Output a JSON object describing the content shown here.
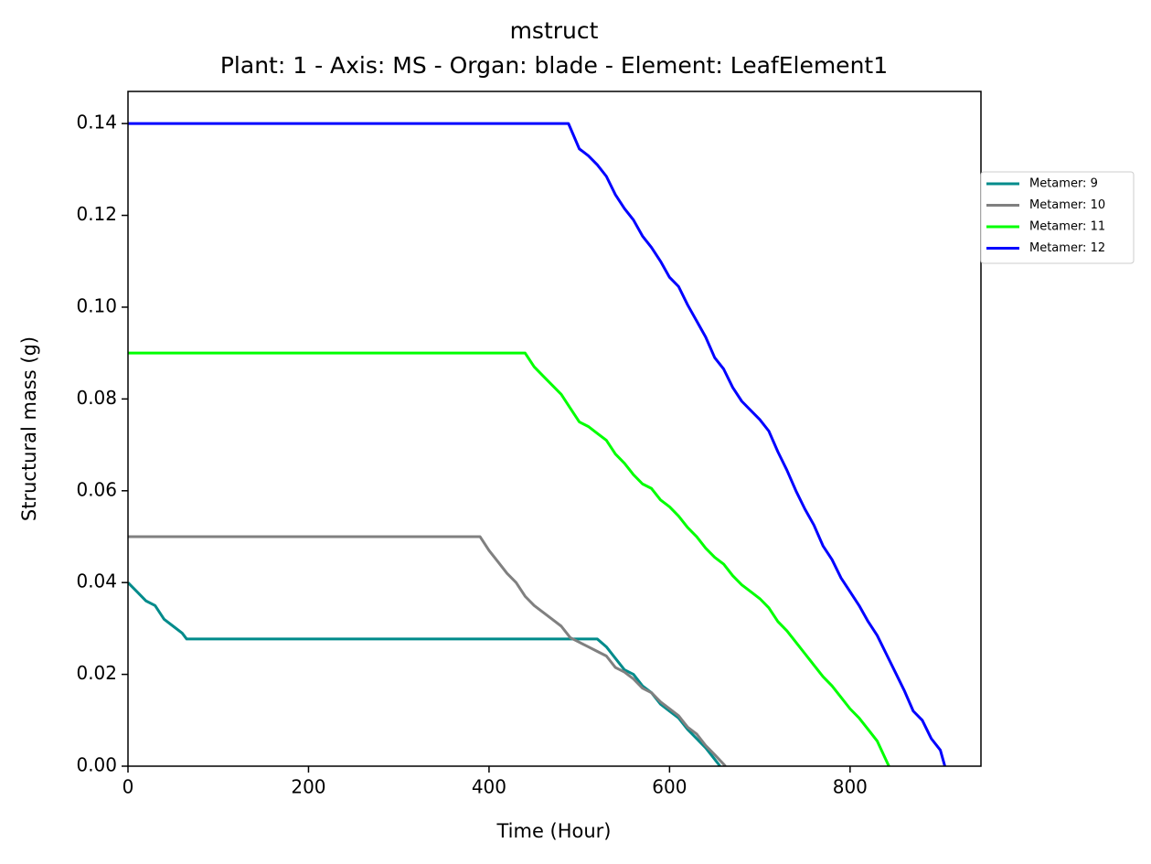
{
  "chart_data": {
    "type": "line",
    "title": "mstruct",
    "subtitle": "Plant: 1 - Axis: MS - Organ: blade - Element: LeafElement1",
    "x_label": "Time (Hour)",
    "y_label": "Structural mass (g)",
    "xlim": [
      0,
      945
    ],
    "ylim": [
      0,
      0.147
    ],
    "xticks": [
      0,
      200,
      400,
      600,
      800
    ],
    "yticks": [
      {
        "value": 0,
        "label": "0.00"
      },
      {
        "value": 0.02,
        "label": "0.02"
      },
      {
        "value": 0.04,
        "label": "0.04"
      },
      {
        "value": 0.06,
        "label": "0.06"
      },
      {
        "value": 0.08,
        "label": "0.08"
      },
      {
        "value": 0.1,
        "label": "0.10"
      },
      {
        "value": 0.12,
        "label": "0.12"
      },
      {
        "value": 0.14,
        "label": "0.14"
      }
    ],
    "grid": false,
    "legend": "outside-right",
    "series": [
      {
        "name": "Metamer: 9",
        "color": "#008b8b",
        "x": [
          0,
          10,
          20,
          30,
          40,
          50,
          60,
          65,
          520,
          530,
          540,
          550,
          560,
          570,
          580,
          590,
          600,
          610,
          620,
          630,
          640,
          650,
          656
        ],
        "values": [
          0.04,
          0.038,
          0.036,
          0.035,
          0.032,
          0.0305,
          0.029,
          0.0277,
          0.0277,
          0.026,
          0.0235,
          0.021,
          0.02,
          0.0175,
          0.016,
          0.0135,
          0.012,
          0.0105,
          0.008,
          0.006,
          0.004,
          0.0015,
          0
        ]
      },
      {
        "name": "Metamer: 10",
        "color": "#808080",
        "x": [
          0,
          390,
          400,
          410,
          420,
          430,
          440,
          450,
          460,
          470,
          480,
          490,
          500,
          510,
          520,
          530,
          540,
          550,
          560,
          570,
          580,
          590,
          600,
          610,
          620,
          630,
          640,
          650,
          662
        ],
        "values": [
          0.05,
          0.05,
          0.047,
          0.0445,
          0.042,
          0.04,
          0.037,
          0.035,
          0.0335,
          0.032,
          0.0305,
          0.028,
          0.027,
          0.026,
          0.025,
          0.024,
          0.0215,
          0.0205,
          0.019,
          0.017,
          0.016,
          0.014,
          0.0125,
          0.011,
          0.0085,
          0.007,
          0.0045,
          0.0025,
          0
        ]
      },
      {
        "name": "Metamer: 11",
        "color": "#00ff00",
        "x": [
          0,
          440,
          450,
          460,
          470,
          480,
          490,
          500,
          510,
          520,
          530,
          540,
          550,
          560,
          570,
          580,
          590,
          600,
          610,
          620,
          630,
          640,
          650,
          660,
          670,
          680,
          690,
          700,
          710,
          720,
          730,
          740,
          750,
          760,
          770,
          780,
          790,
          800,
          810,
          820,
          830,
          843
        ],
        "values": [
          0.09,
          0.09,
          0.087,
          0.085,
          0.083,
          0.081,
          0.078,
          0.075,
          0.074,
          0.0725,
          0.071,
          0.068,
          0.066,
          0.0635,
          0.0615,
          0.0605,
          0.058,
          0.0565,
          0.0545,
          0.052,
          0.05,
          0.0475,
          0.0455,
          0.044,
          0.0415,
          0.0395,
          0.038,
          0.0365,
          0.0345,
          0.0315,
          0.0295,
          0.027,
          0.0245,
          0.022,
          0.0195,
          0.0175,
          0.015,
          0.0125,
          0.0105,
          0.008,
          0.0055,
          0
        ]
      },
      {
        "name": "Metamer: 12",
        "color": "#0000ff",
        "x": [
          0,
          488,
          500,
          510,
          520,
          530,
          540,
          550,
          560,
          570,
          580,
          590,
          600,
          610,
          620,
          630,
          640,
          650,
          660,
          670,
          680,
          690,
          700,
          710,
          720,
          730,
          740,
          750,
          760,
          770,
          780,
          790,
          800,
          810,
          820,
          830,
          840,
          850,
          860,
          870,
          880,
          890,
          900,
          905
        ],
        "values": [
          0.14,
          0.14,
          0.1345,
          0.133,
          0.131,
          0.1285,
          0.1245,
          0.1215,
          0.119,
          0.1155,
          0.113,
          0.11,
          0.1065,
          0.1045,
          0.1005,
          0.097,
          0.0935,
          0.089,
          0.0865,
          0.0825,
          0.0795,
          0.0775,
          0.0755,
          0.073,
          0.0685,
          0.0645,
          0.06,
          0.056,
          0.0525,
          0.048,
          0.045,
          0.041,
          0.038,
          0.035,
          0.0315,
          0.0285,
          0.0245,
          0.0205,
          0.0165,
          0.012,
          0.01,
          0.006,
          0.0035,
          0
        ]
      }
    ]
  }
}
